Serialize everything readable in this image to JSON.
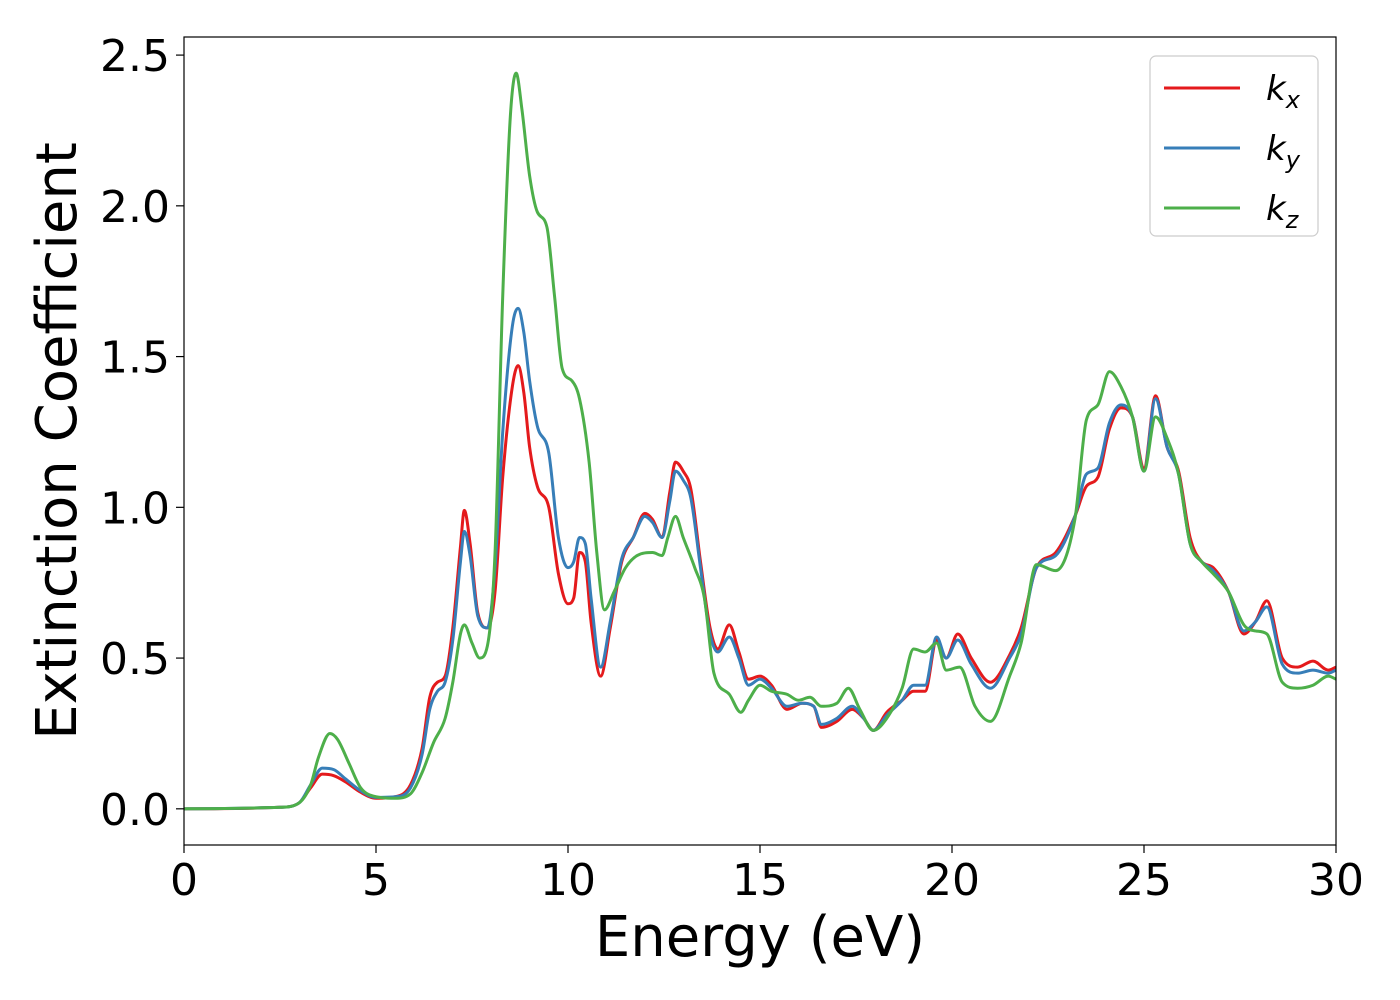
{
  "chart_data": {
    "type": "line",
    "title": "",
    "xlabel": "Energy (eV)",
    "ylabel": "Extinction Coefficient",
    "xlim": [
      0,
      30
    ],
    "ylim": [
      -0.12,
      2.56
    ],
    "xticks": [
      0,
      5,
      10,
      15,
      20,
      25,
      30
    ],
    "xtick_labels": [
      "0",
      "5",
      "10",
      "15",
      "20",
      "25",
      "30"
    ],
    "yticks": [
      0.0,
      0.5,
      1.0,
      1.5,
      2.0,
      2.5
    ],
    "ytick_labels": [
      "0.0",
      "0.5",
      "1.0",
      "1.5",
      "2.0",
      "2.5"
    ],
    "grid": false,
    "legend": {
      "position": "top-right"
    },
    "series": [
      {
        "name": "k",
        "subscript": "x",
        "color": "#e41a1c",
        "points": [
          [
            0,
            0
          ],
          [
            2.5,
            0.005
          ],
          [
            3.0,
            0.02
          ],
          [
            3.3,
            0.07
          ],
          [
            3.6,
            0.115
          ],
          [
            3.9,
            0.11
          ],
          [
            4.2,
            0.09
          ],
          [
            4.6,
            0.055
          ],
          [
            5.0,
            0.035
          ],
          [
            5.5,
            0.04
          ],
          [
            5.9,
            0.08
          ],
          [
            6.2,
            0.2
          ],
          [
            6.4,
            0.37
          ],
          [
            6.6,
            0.42
          ],
          [
            6.8,
            0.44
          ],
          [
            7.0,
            0.6
          ],
          [
            7.2,
            0.87
          ],
          [
            7.3,
            0.99
          ],
          [
            7.45,
            0.88
          ],
          [
            7.65,
            0.65
          ],
          [
            7.9,
            0.6
          ],
          [
            8.1,
            0.72
          ],
          [
            8.3,
            1.1
          ],
          [
            8.55,
            1.4
          ],
          [
            8.7,
            1.47
          ],
          [
            8.85,
            1.38
          ],
          [
            9.0,
            1.2
          ],
          [
            9.2,
            1.07
          ],
          [
            9.5,
            1.0
          ],
          [
            9.75,
            0.78
          ],
          [
            10.0,
            0.68
          ],
          [
            10.15,
            0.7
          ],
          [
            10.3,
            0.85
          ],
          [
            10.45,
            0.82
          ],
          [
            10.6,
            0.62
          ],
          [
            10.85,
            0.44
          ],
          [
            11.1,
            0.6
          ],
          [
            11.4,
            0.82
          ],
          [
            11.7,
            0.9
          ],
          [
            12.0,
            0.98
          ],
          [
            12.2,
            0.96
          ],
          [
            12.45,
            0.9
          ],
          [
            12.65,
            1.05
          ],
          [
            12.8,
            1.15
          ],
          [
            13.0,
            1.12
          ],
          [
            13.2,
            1.06
          ],
          [
            13.45,
            0.82
          ],
          [
            13.7,
            0.6
          ],
          [
            13.9,
            0.53
          ],
          [
            14.2,
            0.61
          ],
          [
            14.45,
            0.52
          ],
          [
            14.7,
            0.43
          ],
          [
            15.0,
            0.44
          ],
          [
            15.3,
            0.41
          ],
          [
            15.7,
            0.33
          ],
          [
            16.1,
            0.35
          ],
          [
            16.4,
            0.34
          ],
          [
            16.6,
            0.27
          ],
          [
            17.0,
            0.29
          ],
          [
            17.4,
            0.33
          ],
          [
            17.7,
            0.3
          ],
          [
            17.95,
            0.26
          ],
          [
            18.3,
            0.32
          ],
          [
            18.7,
            0.36
          ],
          [
            19.0,
            0.39
          ],
          [
            19.3,
            0.39
          ],
          [
            19.6,
            0.56
          ],
          [
            19.85,
            0.5
          ],
          [
            20.15,
            0.58
          ],
          [
            20.5,
            0.5
          ],
          [
            21.0,
            0.42
          ],
          [
            21.5,
            0.51
          ],
          [
            21.8,
            0.6
          ],
          [
            22.2,
            0.8
          ],
          [
            22.7,
            0.85
          ],
          [
            23.2,
            0.97
          ],
          [
            23.5,
            1.07
          ],
          [
            23.8,
            1.1
          ],
          [
            24.1,
            1.26
          ],
          [
            24.4,
            1.33
          ],
          [
            24.7,
            1.3
          ],
          [
            25.0,
            1.13
          ],
          [
            25.3,
            1.37
          ],
          [
            25.6,
            1.2
          ],
          [
            25.9,
            1.12
          ],
          [
            26.2,
            0.9
          ],
          [
            26.5,
            0.82
          ],
          [
            26.8,
            0.8
          ],
          [
            27.2,
            0.72
          ],
          [
            27.6,
            0.58
          ],
          [
            27.9,
            0.62
          ],
          [
            28.2,
            0.69
          ],
          [
            28.6,
            0.5
          ],
          [
            29.0,
            0.47
          ],
          [
            29.4,
            0.49
          ],
          [
            29.8,
            0.46
          ],
          [
            30.0,
            0.47
          ]
        ]
      },
      {
        "name": "k",
        "subscript": "y",
        "color": "#377eb8",
        "points": [
          [
            0,
            0
          ],
          [
            2.5,
            0.005
          ],
          [
            3.0,
            0.02
          ],
          [
            3.3,
            0.08
          ],
          [
            3.6,
            0.135
          ],
          [
            3.9,
            0.13
          ],
          [
            4.2,
            0.1
          ],
          [
            4.6,
            0.06
          ],
          [
            5.0,
            0.038
          ],
          [
            5.5,
            0.04
          ],
          [
            5.9,
            0.07
          ],
          [
            6.2,
            0.18
          ],
          [
            6.4,
            0.33
          ],
          [
            6.6,
            0.39
          ],
          [
            6.8,
            0.42
          ],
          [
            7.0,
            0.56
          ],
          [
            7.2,
            0.82
          ],
          [
            7.3,
            0.92
          ],
          [
            7.45,
            0.84
          ],
          [
            7.65,
            0.64
          ],
          [
            7.9,
            0.6
          ],
          [
            8.1,
            0.8
          ],
          [
            8.3,
            1.25
          ],
          [
            8.55,
            1.6
          ],
          [
            8.7,
            1.66
          ],
          [
            8.85,
            1.58
          ],
          [
            9.0,
            1.42
          ],
          [
            9.2,
            1.27
          ],
          [
            9.5,
            1.18
          ],
          [
            9.75,
            0.9
          ],
          [
            10.0,
            0.8
          ],
          [
            10.15,
            0.82
          ],
          [
            10.3,
            0.9
          ],
          [
            10.45,
            0.88
          ],
          [
            10.6,
            0.7
          ],
          [
            10.85,
            0.47
          ],
          [
            11.1,
            0.62
          ],
          [
            11.4,
            0.83
          ],
          [
            11.7,
            0.9
          ],
          [
            12.0,
            0.97
          ],
          [
            12.2,
            0.95
          ],
          [
            12.45,
            0.9
          ],
          [
            12.65,
            1.02
          ],
          [
            12.8,
            1.12
          ],
          [
            13.0,
            1.09
          ],
          [
            13.2,
            1.03
          ],
          [
            13.45,
            0.8
          ],
          [
            13.7,
            0.58
          ],
          [
            13.9,
            0.52
          ],
          [
            14.2,
            0.57
          ],
          [
            14.45,
            0.5
          ],
          [
            14.7,
            0.41
          ],
          [
            15.0,
            0.43
          ],
          [
            15.3,
            0.4
          ],
          [
            15.7,
            0.34
          ],
          [
            16.1,
            0.35
          ],
          [
            16.4,
            0.34
          ],
          [
            16.6,
            0.28
          ],
          [
            17.0,
            0.3
          ],
          [
            17.4,
            0.34
          ],
          [
            17.7,
            0.3
          ],
          [
            17.95,
            0.26
          ],
          [
            18.3,
            0.31
          ],
          [
            18.7,
            0.36
          ],
          [
            19.0,
            0.41
          ],
          [
            19.3,
            0.41
          ],
          [
            19.6,
            0.57
          ],
          [
            19.85,
            0.5
          ],
          [
            20.15,
            0.56
          ],
          [
            20.5,
            0.48
          ],
          [
            21.0,
            0.4
          ],
          [
            21.5,
            0.5
          ],
          [
            21.8,
            0.58
          ],
          [
            22.2,
            0.8
          ],
          [
            22.7,
            0.84
          ],
          [
            23.2,
            0.97
          ],
          [
            23.5,
            1.11
          ],
          [
            23.8,
            1.13
          ],
          [
            24.1,
            1.28
          ],
          [
            24.4,
            1.34
          ],
          [
            24.7,
            1.3
          ],
          [
            25.0,
            1.12
          ],
          [
            25.3,
            1.36
          ],
          [
            25.6,
            1.2
          ],
          [
            25.9,
            1.11
          ],
          [
            26.2,
            0.88
          ],
          [
            26.5,
            0.82
          ],
          [
            26.8,
            0.79
          ],
          [
            27.2,
            0.72
          ],
          [
            27.6,
            0.59
          ],
          [
            27.9,
            0.62
          ],
          [
            28.2,
            0.67
          ],
          [
            28.6,
            0.48
          ],
          [
            29.0,
            0.45
          ],
          [
            29.4,
            0.46
          ],
          [
            29.8,
            0.45
          ],
          [
            30.0,
            0.46
          ]
        ]
      },
      {
        "name": "k",
        "subscript": "z",
        "color": "#4daf4a",
        "points": [
          [
            0,
            0
          ],
          [
            2.5,
            0.005
          ],
          [
            3.0,
            0.02
          ],
          [
            3.3,
            0.08
          ],
          [
            3.5,
            0.17
          ],
          [
            3.8,
            0.25
          ],
          [
            4.0,
            0.23
          ],
          [
            4.3,
            0.15
          ],
          [
            4.6,
            0.07
          ],
          [
            5.0,
            0.04
          ],
          [
            5.5,
            0.035
          ],
          [
            5.9,
            0.05
          ],
          [
            6.2,
            0.12
          ],
          [
            6.5,
            0.22
          ],
          [
            6.8,
            0.3
          ],
          [
            7.0,
            0.42
          ],
          [
            7.2,
            0.58
          ],
          [
            7.3,
            0.61
          ],
          [
            7.5,
            0.55
          ],
          [
            7.7,
            0.5
          ],
          [
            7.9,
            0.54
          ],
          [
            8.1,
            0.85
          ],
          [
            8.3,
            1.7
          ],
          [
            8.5,
            2.3
          ],
          [
            8.65,
            2.44
          ],
          [
            8.8,
            2.32
          ],
          [
            9.0,
            2.1
          ],
          [
            9.2,
            1.98
          ],
          [
            9.45,
            1.93
          ],
          [
            9.65,
            1.7
          ],
          [
            9.85,
            1.46
          ],
          [
            10.1,
            1.42
          ],
          [
            10.3,
            1.36
          ],
          [
            10.55,
            1.15
          ],
          [
            10.75,
            0.85
          ],
          [
            10.95,
            0.66
          ],
          [
            11.2,
            0.72
          ],
          [
            11.5,
            0.8
          ],
          [
            11.8,
            0.84
          ],
          [
            12.2,
            0.85
          ],
          [
            12.45,
            0.84
          ],
          [
            12.6,
            0.9
          ],
          [
            12.8,
            0.97
          ],
          [
            13.0,
            0.9
          ],
          [
            13.3,
            0.8
          ],
          [
            13.55,
            0.7
          ],
          [
            13.8,
            0.45
          ],
          [
            14.2,
            0.38
          ],
          [
            14.5,
            0.32
          ],
          [
            14.7,
            0.36
          ],
          [
            15.0,
            0.41
          ],
          [
            15.3,
            0.39
          ],
          [
            15.7,
            0.38
          ],
          [
            16.0,
            0.36
          ],
          [
            16.3,
            0.37
          ],
          [
            16.6,
            0.34
          ],
          [
            17.0,
            0.35
          ],
          [
            17.3,
            0.4
          ],
          [
            17.6,
            0.33
          ],
          [
            17.95,
            0.26
          ],
          [
            18.3,
            0.3
          ],
          [
            18.7,
            0.4
          ],
          [
            19.0,
            0.53
          ],
          [
            19.3,
            0.52
          ],
          [
            19.6,
            0.55
          ],
          [
            19.85,
            0.46
          ],
          [
            20.2,
            0.47
          ],
          [
            20.6,
            0.34
          ],
          [
            21.0,
            0.29
          ],
          [
            21.5,
            0.44
          ],
          [
            21.8,
            0.55
          ],
          [
            22.2,
            0.81
          ],
          [
            22.7,
            0.79
          ],
          [
            23.2,
            0.96
          ],
          [
            23.5,
            1.29
          ],
          [
            23.8,
            1.34
          ],
          [
            24.1,
            1.45
          ],
          [
            24.4,
            1.4
          ],
          [
            24.7,
            1.3
          ],
          [
            25.0,
            1.12
          ],
          [
            25.3,
            1.3
          ],
          [
            25.6,
            1.23
          ],
          [
            25.9,
            1.11
          ],
          [
            26.2,
            0.88
          ],
          [
            26.5,
            0.82
          ],
          [
            26.8,
            0.78
          ],
          [
            27.2,
            0.72
          ],
          [
            27.6,
            0.61
          ],
          [
            27.9,
            0.59
          ],
          [
            28.2,
            0.58
          ],
          [
            28.6,
            0.42
          ],
          [
            29.0,
            0.4
          ],
          [
            29.4,
            0.41
          ],
          [
            29.8,
            0.44
          ],
          [
            30.0,
            0.43
          ]
        ]
      }
    ]
  }
}
